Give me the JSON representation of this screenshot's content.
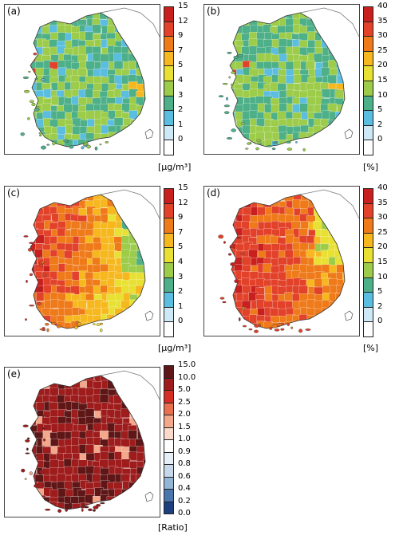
{
  "panels": [
    {
      "label": "(a)",
      "unit": "[µg/m³]",
      "ticks": [
        "15",
        "12",
        "9",
        "7",
        "5",
        "4",
        "3",
        "2",
        "1",
        "0"
      ],
      "colors": [
        "#c8201e",
        "#e3422a",
        "#ef7a1a",
        "#f6b81e",
        "#e8e033",
        "#9ccc4a",
        "#4eb088",
        "#5bbde0",
        "#cce9f5",
        "#ffffff"
      ],
      "fill_level": "low"
    },
    {
      "label": "(b)",
      "unit": "[%]",
      "ticks": [
        "40",
        "35",
        "30",
        "25",
        "20",
        "15",
        "10",
        "5",
        "2",
        "0"
      ],
      "colors": [
        "#c8201e",
        "#e3422a",
        "#ef7a1a",
        "#f6b81e",
        "#e8e033",
        "#9ccc4a",
        "#4eb088",
        "#5bbde0",
        "#cce9f5",
        "#ffffff"
      ],
      "fill_level": "low"
    },
    {
      "label": "(c)",
      "unit": "[µg/m³]",
      "ticks": [
        "15",
        "12",
        "9",
        "7",
        "5",
        "4",
        "3",
        "2",
        "1",
        "0"
      ],
      "colors": [
        "#c8201e",
        "#e3422a",
        "#ef7a1a",
        "#f6b81e",
        "#e8e033",
        "#9ccc4a",
        "#4eb088",
        "#5bbde0",
        "#cce9f5",
        "#ffffff"
      ],
      "fill_level": "mid"
    },
    {
      "label": "(d)",
      "unit": "[%]",
      "ticks": [
        "40",
        "35",
        "30",
        "25",
        "20",
        "15",
        "10",
        "5",
        "2",
        "0"
      ],
      "colors": [
        "#c8201e",
        "#e3422a",
        "#ef7a1a",
        "#f6b81e",
        "#e8e033",
        "#9ccc4a",
        "#4eb088",
        "#5bbde0",
        "#cce9f5",
        "#ffffff"
      ],
      "fill_level": "high"
    },
    {
      "label": "(e)",
      "unit": "[Ratio]",
      "ticks": [
        "15.0",
        "10.0",
        "5.0",
        "2.5",
        "2.0",
        "1.5",
        "1.0",
        "0.9",
        "0.8",
        "0.6",
        "0.4",
        "0.2",
        "0.0"
      ],
      "colors": [
        "#5e1616",
        "#9e1c1c",
        "#d42e26",
        "#e8704f",
        "#f3a88c",
        "#fbd9cb",
        "#ffffff",
        "#e6eef6",
        "#c7d8ea",
        "#93b5d6",
        "#4a76ae",
        "#1d3f7d"
      ],
      "fill_level": "ratio"
    }
  ]
}
